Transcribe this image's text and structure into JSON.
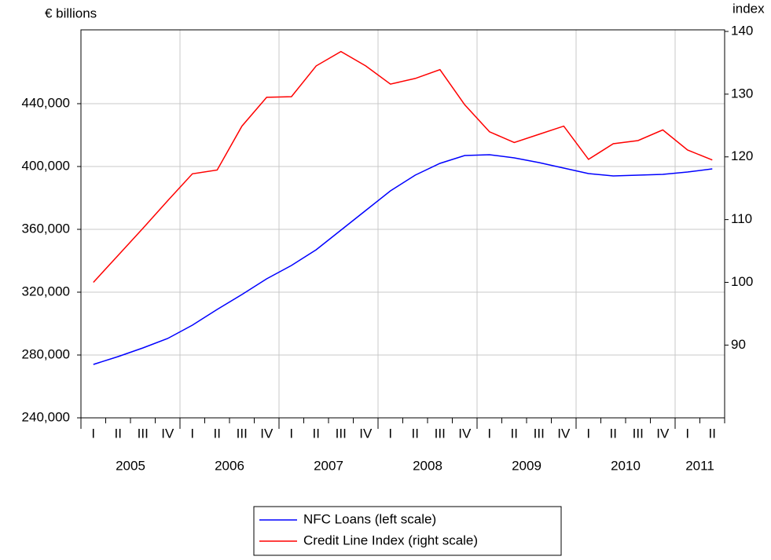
{
  "chart_data": {
    "type": "line",
    "y_axis_label": "€ billions",
    "y2_axis_label": "index",
    "categories": [
      "I",
      "II",
      "III",
      "IV",
      "I",
      "II",
      "III",
      "IV",
      "I",
      "II",
      "III",
      "IV",
      "I",
      "II",
      "III",
      "IV",
      "I",
      "II",
      "III",
      "IV",
      "I",
      "II",
      "III",
      "IV",
      "I",
      "II"
    ],
    "year_labels": [
      "2005",
      "2006",
      "2007",
      "2008",
      "2009",
      "2010",
      "2011"
    ],
    "series": [
      {
        "name": "NFC Loans (left scale)",
        "color": "#0000ff",
        "axis": "y",
        "values": [
          274000,
          279000,
          284500,
          290500,
          299000,
          309000,
          318500,
          328500,
          337000,
          347000,
          359500,
          372000,
          384500,
          394500,
          402000,
          407000,
          407500,
          405500,
          402500,
          399000,
          395500,
          394000,
          394500,
          395000,
          396500,
          398500
        ]
      },
      {
        "name": "Credit Line Index (right scale)",
        "color": "#ff0000",
        "axis": "y2",
        "values": [
          100,
          104.3,
          108.6,
          113,
          117.3,
          117.9,
          124.9,
          129.5,
          129.6,
          134.5,
          136.8,
          134.5,
          131.6,
          132.5,
          133.9,
          128.3,
          124,
          122.3,
          123.6,
          124.9,
          119.6,
          122.1,
          122.6,
          124.3,
          121.1,
          119.5
        ]
      }
    ],
    "ylim": [
      240000,
      487000
    ],
    "yticks": [
      {
        "value": 240000,
        "label": "240,000"
      },
      {
        "value": 280000,
        "label": "280,000"
      },
      {
        "value": 320000,
        "label": "320,000"
      },
      {
        "value": 360000,
        "label": "360,000"
      },
      {
        "value": 400000,
        "label": "400,000"
      },
      {
        "value": 440000,
        "label": "440,000"
      }
    ],
    "y2lim": [
      78.4,
      140.25
    ],
    "y2ticks": [
      90,
      100,
      110,
      120,
      130,
      140
    ],
    "grid": true
  }
}
